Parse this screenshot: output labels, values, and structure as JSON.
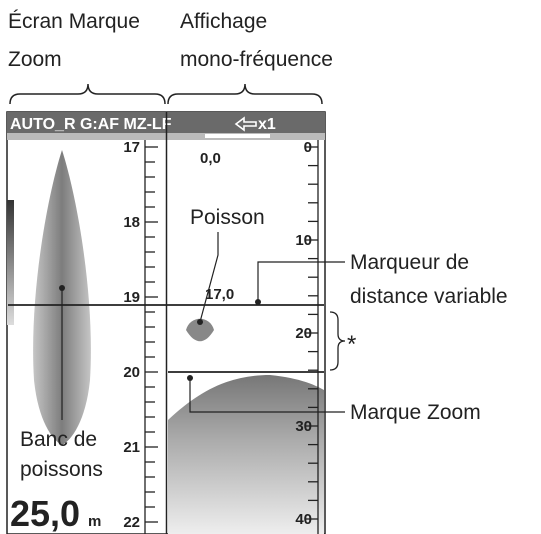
{
  "header_labels": {
    "zoom_screen": [
      "Écran Marque",
      "Zoom"
    ],
    "single_freq": [
      "Affichage",
      "mono-fréquence"
    ]
  },
  "status_bar": {
    "mode": "AUTO_R G:AF MZ-LF",
    "zoom": "x1"
  },
  "zoom_scale": [
    "17",
    "18",
    "19",
    "20",
    "21",
    "22"
  ],
  "depth_scale": [
    "0",
    "10",
    "20",
    "30",
    "40"
  ],
  "readouts": {
    "top": "0,0",
    "vrm": "17,0",
    "depth": "25,0",
    "unit": "m"
  },
  "callouts": {
    "fish": "Poisson",
    "vrm": [
      "Marqueur de",
      "distance variable"
    ],
    "asterisk": "*",
    "zoom_mark": "Marque Zoom",
    "school": [
      "Banc de",
      "poissons"
    ]
  }
}
